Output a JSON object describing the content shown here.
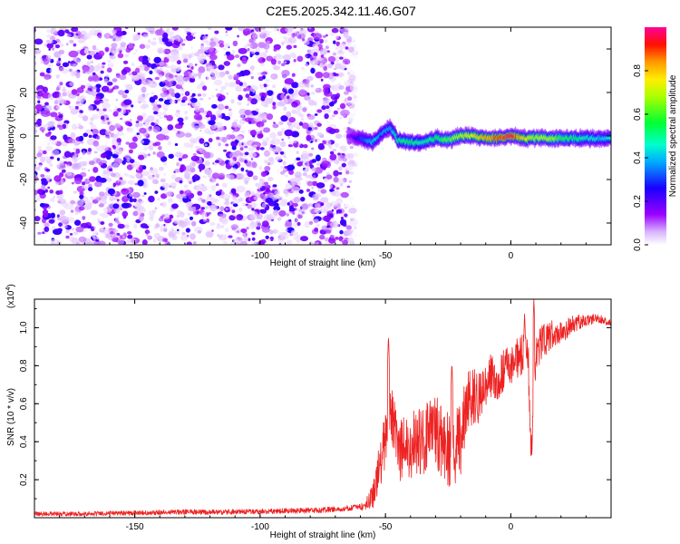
{
  "title": "C2E5.2025.342.11.46.G07",
  "chart_data": [
    {
      "type": "heatmap",
      "name": "spectrogram",
      "xlabel": "Height of straight line (km)",
      "ylabel": "Frequency (Hz)",
      "xlim": [
        -190,
        40
      ],
      "ylim": [
        -50,
        50
      ],
      "xticks": [
        -150,
        -100,
        -50,
        0
      ],
      "yticks": [
        -40,
        -20,
        0,
        20,
        40
      ],
      "colorbar": {
        "label": "Normalized spectral amplitude",
        "range": [
          0.0,
          1.0
        ],
        "ticks": [
          0.0,
          0.2,
          0.4,
          0.6,
          0.8
        ],
        "colors": [
          "#ffffff",
          "#b000ff",
          "#3300ff",
          "#00ccff",
          "#00ff00",
          "#ffff00",
          "#ff8800",
          "#ff0000",
          "#ff0099"
        ]
      },
      "noise_region_x": [
        -190,
        -63
      ],
      "noise_amplitude": [
        0.02,
        0.22
      ],
      "signal_track": {
        "x": [
          -65,
          -60,
          -55,
          -52,
          -48,
          -45,
          -40,
          -35,
          -30,
          -25,
          -20,
          -15,
          -10,
          -5,
          0,
          5,
          10,
          15,
          20,
          25,
          30,
          35,
          40
        ],
        "freq": [
          0,
          -1,
          -3,
          1,
          4,
          -2,
          -3,
          -3,
          -1,
          -2,
          0,
          0,
          -1,
          -1,
          0,
          -1,
          -1,
          -1,
          -1,
          -1,
          -1,
          -1,
          -1
        ],
        "amplitude": [
          0.15,
          0.3,
          0.45,
          0.38,
          0.4,
          0.52,
          0.55,
          0.5,
          0.55,
          0.62,
          0.72,
          0.75,
          0.85,
          0.9,
          0.98,
          0.8,
          0.7,
          0.7,
          0.6,
          0.55,
          0.5,
          0.45,
          0.45
        ]
      }
    },
    {
      "type": "line",
      "name": "snr",
      "xlabel": "Height of straight line (km)",
      "ylabel": "SNR (10 * v/v)",
      "scale_label": "(x10",
      "scale_exponent": "4",
      "scale_close": ")",
      "xlim": [
        -190,
        40
      ],
      "ylim": [
        0,
        1.15
      ],
      "xticks": [
        -150,
        -100,
        -50,
        0
      ],
      "yticks": [
        0.2,
        0.4,
        0.6,
        0.8,
        1.0
      ],
      "ytick_labels": [
        "0.2",
        "0.4",
        "0.6",
        "0.8",
        "1.0"
      ],
      "color": "#ee2222",
      "series": {
        "x": [
          -190,
          -170,
          -150,
          -130,
          -110,
          -90,
          -75,
          -65,
          -58,
          -55,
          -52,
          -50,
          -48,
          -45,
          -40,
          -35,
          -30,
          -25,
          -20,
          -18,
          -15,
          -12,
          -8,
          -5,
          -2,
          0,
          3,
          5,
          7,
          8,
          10,
          12,
          15,
          18,
          20,
          25,
          30,
          35,
          40
        ],
        "y": [
          0.02,
          0.02,
          0.025,
          0.03,
          0.03,
          0.035,
          0.04,
          0.05,
          0.06,
          0.12,
          0.3,
          0.42,
          0.6,
          0.35,
          0.38,
          0.4,
          0.45,
          0.35,
          0.4,
          0.6,
          0.62,
          0.65,
          0.75,
          0.72,
          0.8,
          0.8,
          0.85,
          0.88,
          0.82,
          0.3,
          0.85,
          0.92,
          0.95,
          0.98,
          0.97,
          1.02,
          1.04,
          1.05,
          1.02
        ]
      },
      "noise_scale": {
        "x": [
          -190,
          -60,
          -56,
          -52,
          -45,
          -40,
          -30,
          -20,
          -15,
          -10,
          0,
          5,
          10,
          20,
          30,
          40
        ],
        "amp": [
          0.012,
          0.015,
          0.05,
          0.14,
          0.16,
          0.18,
          0.2,
          0.2,
          0.16,
          0.12,
          0.1,
          0.12,
          0.1,
          0.06,
          0.03,
          0.02
        ]
      },
      "spikes": [
        {
          "x": -48.8,
          "y": 0.96
        },
        {
          "x": 9.2,
          "y": 1.15
        },
        {
          "x": 5.5,
          "y": 1.08
        },
        {
          "x": -23.5,
          "y": 0.82
        }
      ]
    }
  ]
}
